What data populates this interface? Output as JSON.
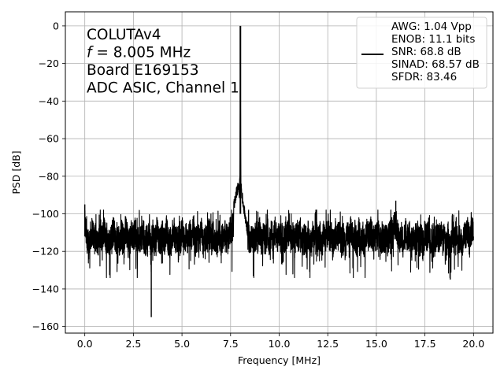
{
  "chart_data": {
    "type": "line",
    "title": "",
    "xlabel": "Frequency [MHz]",
    "ylabel": "PSD [dB]",
    "xlim": [
      -1.0,
      21.0
    ],
    "ylim": [
      -163.5,
      7.5
    ],
    "xticks": [
      0.0,
      2.5,
      5.0,
      7.5,
      10.0,
      12.5,
      15.0,
      17.5,
      20.0
    ],
    "xtick_labels": [
      "0.0",
      "2.5",
      "5.0",
      "7.5",
      "10.0",
      "12.5",
      "15.0",
      "17.5",
      "20.0"
    ],
    "yticks": [
      0,
      -20,
      -40,
      -60,
      -80,
      -100,
      -120,
      -140,
      -160
    ],
    "ytick_labels": [
      "0",
      "−20",
      "−40",
      "−60",
      "−80",
      "−100",
      "−120",
      "−140",
      "−160"
    ],
    "grid": true,
    "annotation_lines": [
      {
        "text": "COLUTAv4"
      },
      {
        "italic": "f",
        "text": " = 8.005 MHz"
      },
      {
        "text": "Board E169153"
      },
      {
        "text": "ADC ASIC, Channel  1"
      }
    ],
    "legend": {
      "placement": "upper right",
      "lines": [
        "AWG: 1.04 Vpp",
        "ENOB: 11.1 bits",
        "SNR: 68.8 dB",
        "SINAD: 68.57 dB",
        "SFDR: 83.46"
      ]
    },
    "series": [
      {
        "color": "#000000",
        "noise_floor_db": -112,
        "noise_range_db": [
          -130,
          -98
        ],
        "x_range": [
          0.0,
          20.0
        ],
        "peaks": [
          {
            "x": 0.0,
            "y": -95
          },
          {
            "x": 3.42,
            "y": -155
          },
          {
            "x": 8.005,
            "y": 0
          },
          {
            "x": 16.0,
            "y": -93
          },
          {
            "x": 18.8,
            "y": -135
          }
        ],
        "points": [
          [
            0.0,
            -95
          ],
          [
            0.05,
            -104
          ],
          [
            0.1,
            -121
          ],
          [
            0.15,
            -108
          ],
          [
            0.2,
            -124
          ],
          [
            0.3,
            -110
          ],
          [
            0.4,
            -103
          ],
          [
            0.5,
            -119
          ],
          [
            0.6,
            -111
          ],
          [
            0.7,
            -125
          ],
          [
            0.8,
            -106
          ],
          [
            0.9,
            -116
          ],
          [
            1.0,
            -102
          ],
          [
            1.1,
            -121
          ],
          [
            1.2,
            -112
          ],
          [
            1.3,
            -127
          ],
          [
            1.4,
            -109
          ],
          [
            1.5,
            -104
          ],
          [
            1.6,
            -120
          ],
          [
            1.7,
            -113
          ],
          [
            1.8,
            -122
          ],
          [
            1.9,
            -107
          ],
          [
            2.0,
            -118
          ],
          [
            2.1,
            -101
          ],
          [
            2.2,
            -116
          ],
          [
            2.3,
            -124
          ],
          [
            2.4,
            -110
          ],
          [
            2.5,
            -114
          ],
          [
            2.6,
            -103
          ],
          [
            2.7,
            -123
          ],
          [
            2.8,
            -111
          ],
          [
            2.9,
            -119
          ],
          [
            3.0,
            -106
          ],
          [
            3.1,
            -126
          ],
          [
            3.2,
            -112
          ],
          [
            3.3,
            -104
          ],
          [
            3.38,
            -118
          ],
          [
            3.42,
            -155
          ],
          [
            3.46,
            -116
          ],
          [
            3.5,
            -109
          ],
          [
            3.6,
            -121
          ],
          [
            3.7,
            -104
          ],
          [
            3.8,
            -115
          ],
          [
            3.9,
            -123
          ],
          [
            4.0,
            -108
          ],
          [
            4.1,
            -119
          ],
          [
            4.2,
            -102
          ],
          [
            4.3,
            -117
          ],
          [
            4.4,
            -125
          ],
          [
            4.5,
            -111
          ],
          [
            4.6,
            -106
          ],
          [
            4.7,
            -120
          ],
          [
            4.8,
            -113
          ],
          [
            4.9,
            -124
          ],
          [
            5.0,
            -103
          ],
          [
            5.1,
            -118
          ],
          [
            5.2,
            -110
          ],
          [
            5.3,
            -127
          ],
          [
            5.4,
            -107
          ],
          [
            5.5,
            -116
          ],
          [
            5.6,
            -101
          ],
          [
            5.7,
            -122
          ],
          [
            5.8,
            -113
          ],
          [
            5.9,
            -119
          ],
          [
            6.0,
            -105
          ],
          [
            6.1,
            -124
          ],
          [
            6.2,
            -111
          ],
          [
            6.3,
            -117
          ],
          [
            6.4,
            -103
          ],
          [
            6.5,
            -121
          ],
          [
            6.6,
            -108
          ],
          [
            6.7,
            -114
          ],
          [
            6.8,
            -126
          ],
          [
            6.9,
            -106
          ],
          [
            7.0,
            -119
          ],
          [
            7.1,
            -112
          ],
          [
            7.2,
            -104
          ],
          [
            7.3,
            -116
          ],
          [
            7.4,
            -109
          ],
          [
            7.5,
            -101
          ],
          [
            7.55,
            -100
          ],
          [
            7.6,
            -98
          ],
          [
            7.65,
            -96
          ],
          [
            7.7,
            -94
          ],
          [
            7.75,
            -92
          ],
          [
            7.8,
            -89
          ],
          [
            7.85,
            -87
          ],
          [
            7.9,
            -85
          ],
          [
            7.95,
            -89
          ],
          [
            7.98,
            -80
          ],
          [
            8.0,
            -40
          ],
          [
            8.005,
            0
          ],
          [
            8.01,
            -40
          ],
          [
            8.03,
            -82
          ],
          [
            8.06,
            -88
          ],
          [
            8.1,
            -91
          ],
          [
            8.15,
            -95
          ],
          [
            8.2,
            -98
          ],
          [
            8.25,
            -101
          ],
          [
            8.3,
            -105
          ],
          [
            8.4,
            -112
          ],
          [
            8.5,
            -118
          ],
          [
            8.6,
            -107
          ],
          [
            8.7,
            -122
          ],
          [
            8.8,
            -110
          ],
          [
            8.9,
            -116
          ],
          [
            9.0,
            -103
          ],
          [
            9.1,
            -125
          ],
          [
            9.2,
            -112
          ],
          [
            9.3,
            -119
          ],
          [
            9.4,
            -105
          ],
          [
            9.5,
            -121
          ],
          [
            9.6,
            -109
          ],
          [
            9.7,
            -114
          ],
          [
            9.8,
            -102
          ],
          [
            9.9,
            -123
          ],
          [
            10.0,
            -111
          ],
          [
            10.1,
            -117
          ],
          [
            10.2,
            -106
          ],
          [
            10.3,
            -128
          ],
          [
            10.4,
            -113
          ],
          [
            10.5,
            -104
          ],
          [
            10.6,
            -120
          ],
          [
            10.7,
            -110
          ],
          [
            10.8,
            -124
          ],
          [
            10.9,
            -107
          ],
          [
            11.0,
            -115
          ],
          [
            11.1,
            -101
          ],
          [
            11.2,
            -122
          ],
          [
            11.3,
            -112
          ],
          [
            11.4,
            -118
          ],
          [
            11.5,
            -105
          ],
          [
            11.6,
            -126
          ],
          [
            11.7,
            -109
          ],
          [
            11.8,
            -116
          ],
          [
            11.9,
            -103
          ],
          [
            12.0,
            -121
          ],
          [
            12.1,
            -111
          ],
          [
            12.2,
            -127
          ],
          [
            12.3,
            -108
          ],
          [
            12.4,
            -114
          ],
          [
            12.5,
            -102
          ],
          [
            12.6,
            -119
          ],
          [
            12.7,
            -110
          ],
          [
            12.8,
            -125
          ],
          [
            12.9,
            -106
          ],
          [
            13.0,
            -117
          ],
          [
            13.1,
            -104
          ],
          [
            13.2,
            -122
          ],
          [
            13.3,
            -112
          ],
          [
            13.4,
            -129
          ],
          [
            13.5,
            -108
          ],
          [
            13.6,
            -115
          ],
          [
            13.7,
            -101
          ],
          [
            13.8,
            -120
          ],
          [
            13.9,
            -110
          ],
          [
            14.0,
            -124
          ],
          [
            14.1,
            -105
          ],
          [
            14.2,
            -118
          ],
          [
            14.3,
            -111
          ],
          [
            14.4,
            -127
          ],
          [
            14.5,
            -107
          ],
          [
            14.6,
            -113
          ],
          [
            14.7,
            -102
          ],
          [
            14.8,
            -121
          ],
          [
            14.9,
            -109
          ],
          [
            15.0,
            -116
          ],
          [
            15.1,
            -104
          ],
          [
            15.2,
            -123
          ],
          [
            15.3,
            -111
          ],
          [
            15.4,
            -119
          ],
          [
            15.5,
            -106
          ],
          [
            15.6,
            -125
          ],
          [
            15.7,
            -103
          ],
          [
            15.8,
            -112
          ],
          [
            15.9,
            -99
          ],
          [
            15.95,
            -95
          ],
          [
            16.0,
            -93
          ],
          [
            16.05,
            -98
          ],
          [
            16.1,
            -108
          ],
          [
            16.2,
            -121
          ],
          [
            16.3,
            -110
          ],
          [
            16.4,
            -126
          ],
          [
            16.5,
            -105
          ],
          [
            16.6,
            -117
          ],
          [
            16.7,
            -112
          ],
          [
            16.8,
            -124
          ],
          [
            16.9,
            -108
          ],
          [
            17.0,
            -115
          ],
          [
            17.1,
            -102
          ],
          [
            17.2,
            -122
          ],
          [
            17.3,
            -111
          ],
          [
            17.4,
            -128
          ],
          [
            17.5,
            -107
          ],
          [
            17.6,
            -114
          ],
          [
            17.7,
            -103
          ],
          [
            17.8,
            -120
          ],
          [
            17.9,
            -110
          ],
          [
            18.0,
            -126
          ],
          [
            18.1,
            -106
          ],
          [
            18.2,
            -117
          ],
          [
            18.3,
            -104
          ],
          [
            18.4,
            -123
          ],
          [
            18.5,
            -112
          ],
          [
            18.6,
            -129
          ],
          [
            18.7,
            -109
          ],
          [
            18.8,
            -135
          ],
          [
            18.9,
            -107
          ],
          [
            19.0,
            -118
          ],
          [
            19.1,
            -102
          ],
          [
            19.2,
            -124
          ],
          [
            19.3,
            -111
          ],
          [
            19.4,
            -127
          ],
          [
            19.5,
            -105
          ],
          [
            19.6,
            -116
          ],
          [
            19.7,
            -103
          ],
          [
            19.8,
            -121
          ],
          [
            19.9,
            -99
          ],
          [
            20.0,
            -110
          ]
        ]
      }
    ]
  }
}
